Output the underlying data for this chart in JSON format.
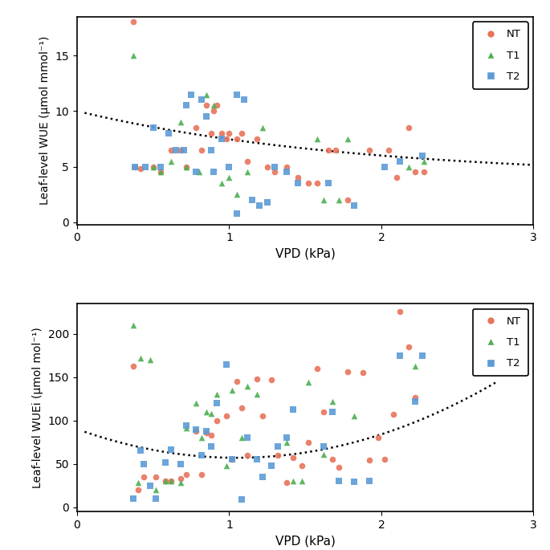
{
  "plot1": {
    "ylabel": "Leaf-level WUE (μmol mmol⁻¹)",
    "xlabel": "VPD (kPa)",
    "xlim": [
      0,
      3
    ],
    "ylim": [
      -0.2,
      18.5
    ],
    "yticks": [
      0,
      5,
      10,
      15
    ],
    "xticks": [
      0,
      1,
      2,
      3
    ],
    "NT_x": [
      0.37,
      0.38,
      0.42,
      0.5,
      0.55,
      0.62,
      0.68,
      0.72,
      0.78,
      0.82,
      0.85,
      0.88,
      0.9,
      0.92,
      0.95,
      0.98,
      1.0,
      1.05,
      1.08,
      1.12,
      1.18,
      1.25,
      1.3,
      1.38,
      1.45,
      1.52,
      1.58,
      1.65,
      1.7,
      1.78,
      1.92,
      2.05,
      2.1,
      2.18,
      2.22,
      2.28
    ],
    "NT_y": [
      18.0,
      5.0,
      4.8,
      5.0,
      4.5,
      6.5,
      6.5,
      5.0,
      8.5,
      6.5,
      10.5,
      8.0,
      10.0,
      10.5,
      8.0,
      7.5,
      8.0,
      7.5,
      8.0,
      5.5,
      7.5,
      5.0,
      4.5,
      5.0,
      4.0,
      3.5,
      3.5,
      6.5,
      6.5,
      2.0,
      6.5,
      6.5,
      4.0,
      8.5,
      4.5,
      4.5
    ],
    "T1_x": [
      0.37,
      0.5,
      0.55,
      0.62,
      0.68,
      0.72,
      0.8,
      0.85,
      0.9,
      0.95,
      1.0,
      1.05,
      1.12,
      1.22,
      1.58,
      1.62,
      1.72,
      1.78,
      2.18,
      2.28
    ],
    "T1_y": [
      15.0,
      5.0,
      4.5,
      5.5,
      9.0,
      5.0,
      4.5,
      11.5,
      10.5,
      3.5,
      4.0,
      2.5,
      4.5,
      8.5,
      7.5,
      2.0,
      2.0,
      7.5,
      5.0,
      5.5
    ],
    "T2_x": [
      0.38,
      0.45,
      0.5,
      0.55,
      0.6,
      0.65,
      0.7,
      0.72,
      0.75,
      0.78,
      0.82,
      0.85,
      0.88,
      0.9,
      0.95,
      1.0,
      1.05,
      1.05,
      1.1,
      1.15,
      1.2,
      1.25,
      1.3,
      1.38,
      1.45,
      1.65,
      1.82,
      2.02,
      2.12,
      2.27
    ],
    "T2_y": [
      5.0,
      5.0,
      8.5,
      5.0,
      8.0,
      6.5,
      6.5,
      10.5,
      11.5,
      4.5,
      11.0,
      9.5,
      6.5,
      4.5,
      7.5,
      5.0,
      11.5,
      0.8,
      11.0,
      2.0,
      1.5,
      1.8,
      5.0,
      4.5,
      3.5,
      3.5,
      1.5,
      5.0,
      5.5,
      6.0
    ],
    "curve_a": 6.0,
    "curve_b": -0.55,
    "curve_c": 4.0,
    "curve_xstart": 0.05
  },
  "plot2": {
    "ylabel": "Leaf-level WUEi (μmol mol⁻¹)",
    "xlabel": "VPD (kPa)",
    "xlim": [
      0,
      3
    ],
    "ylim": [
      -5,
      235
    ],
    "yticks": [
      0,
      50,
      100,
      150,
      200
    ],
    "xticks": [
      0,
      1,
      2,
      3
    ],
    "NT_x": [
      0.37,
      0.4,
      0.44,
      0.52,
      0.58,
      0.62,
      0.68,
      0.72,
      0.78,
      0.82,
      0.85,
      0.88,
      0.92,
      0.98,
      1.02,
      1.05,
      1.08,
      1.12,
      1.18,
      1.22,
      1.28,
      1.32,
      1.38,
      1.42,
      1.48,
      1.52,
      1.58,
      1.62,
      1.68,
      1.72,
      1.78,
      1.88,
      1.92,
      1.98,
      2.02,
      2.08,
      2.12,
      2.18,
      2.22
    ],
    "NT_y": [
      163,
      20,
      35,
      35,
      30,
      30,
      33,
      38,
      88,
      38,
      86,
      83,
      100,
      105,
      55,
      145,
      115,
      60,
      148,
      105,
      147,
      60,
      28,
      57,
      48,
      75,
      160,
      110,
      55,
      46,
      156,
      155,
      54,
      80,
      55,
      107,
      226,
      185,
      127
    ],
    "T1_x": [
      0.37,
      0.4,
      0.42,
      0.48,
      0.52,
      0.58,
      0.62,
      0.68,
      0.72,
      0.78,
      0.82,
      0.85,
      0.88,
      0.92,
      0.98,
      1.02,
      1.08,
      1.12,
      1.18,
      1.38,
      1.42,
      1.48,
      1.52,
      1.62,
      1.68,
      1.82,
      2.22
    ],
    "T1_y": [
      210,
      28,
      172,
      170,
      20,
      30,
      30,
      28,
      91,
      120,
      80,
      110,
      108,
      130,
      48,
      135,
      80,
      140,
      130,
      75,
      30,
      30,
      144,
      61,
      122,
      105,
      163
    ],
    "T2_x": [
      0.37,
      0.42,
      0.44,
      0.48,
      0.52,
      0.58,
      0.62,
      0.68,
      0.72,
      0.78,
      0.82,
      0.85,
      0.88,
      0.92,
      0.98,
      1.02,
      1.08,
      1.12,
      1.18,
      1.22,
      1.28,
      1.32,
      1.38,
      1.42,
      1.62,
      1.68,
      1.72,
      1.82,
      1.92,
      2.12,
      2.22,
      2.27
    ],
    "T2_y": [
      10,
      65,
      50,
      25,
      10,
      52,
      66,
      50,
      94,
      90,
      60,
      88,
      70,
      120,
      165,
      55,
      9,
      80,
      55,
      35,
      48,
      70,
      80,
      113,
      70,
      110,
      30,
      29,
      30,
      175,
      122,
      175
    ],
    "curve_a": 30.0,
    "curve_x0": 1.05,
    "curve_c": 57.0
  },
  "NT_color": "#E8735A",
  "T1_color": "#4CAF50",
  "T2_color": "#5B9BD5",
  "marker_size": 30,
  "alpha": 0.9
}
